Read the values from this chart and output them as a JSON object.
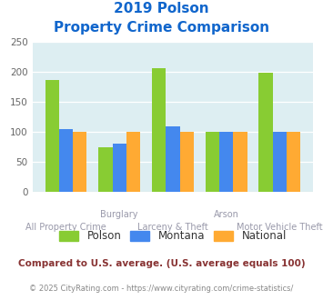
{
  "title_line1": "2019 Polson",
  "title_line2": "Property Crime Comparison",
  "categories": [
    "All Property Crime",
    "Burglary",
    "Larceny & Theft",
    "Arson",
    "Motor Vehicle Theft"
  ],
  "polson": [
    186,
    75,
    207,
    100,
    199
  ],
  "montana": [
    105,
    80,
    110,
    100,
    101
  ],
  "national": [
    100,
    100,
    100,
    100,
    100
  ],
  "colors": {
    "polson": "#88cc33",
    "montana": "#4488ee",
    "national": "#ffaa33"
  },
  "ylim": [
    0,
    250
  ],
  "yticks": [
    0,
    50,
    100,
    150,
    200,
    250
  ],
  "plot_bg": "#ddeef2",
  "title_color": "#1166cc",
  "label_color": "#9999aa",
  "legend_text_color": "#333333",
  "footer_note": "Compared to U.S. average. (U.S. average equals 100)",
  "footer_copy": "© 2025 CityRating.com - https://www.cityrating.com/crime-statistics/",
  "footer_note_color": "#883333",
  "footer_copy_color": "#888888",
  "footer_url_color": "#4488cc",
  "legend_labels": [
    "Polson",
    "Montana",
    "National"
  ],
  "top_labels": [
    "",
    "Burglary",
    "",
    "Arson",
    ""
  ],
  "bottom_labels": [
    "All Property Crime",
    "",
    "Larceny & Theft",
    "",
    "Motor Vehicle Theft"
  ]
}
